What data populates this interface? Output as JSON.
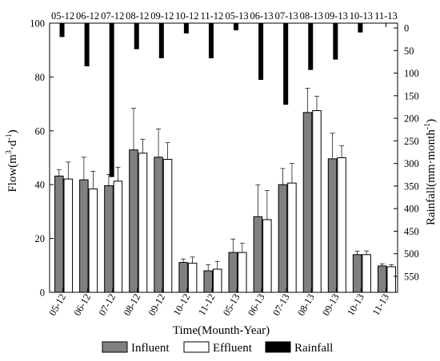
{
  "chart_data": {
    "type": "bar",
    "categories": [
      "05-12",
      "06-12",
      "07-12",
      "08-12",
      "09-12",
      "10-12",
      "11-12",
      "05-13",
      "06-13",
      "07-13",
      "08-13",
      "09-13",
      "10-13",
      "11-13"
    ],
    "xlabel": "Time(Mounth-Year)",
    "ylabel_left": "Flow(m3·d-1)",
    "ylabel_left_parts": {
      "base": "Flow(m",
      "sup1": "3",
      "mid": "·d",
      "sup2": "-1",
      "end": ")"
    },
    "ylabel_right": "Rainfall(mm·month-1)",
    "ylabel_right_parts": {
      "base": "Rainfall(mm·month",
      "sup": "-1",
      "end": ")"
    },
    "ylim_left": [
      0,
      100
    ],
    "yticks_left": [
      0,
      20,
      40,
      60,
      80,
      100
    ],
    "ylim_right": [
      0,
      550
    ],
    "yticks_right": [
      0,
      50,
      100,
      150,
      200,
      250,
      300,
      350,
      400,
      450,
      500,
      550
    ],
    "right_axis_inverted": true,
    "series": [
      {
        "name": "Influent",
        "axis": "left",
        "color": "#808080",
        "values": [
          43.2,
          41.8,
          39.6,
          52.9,
          50.2,
          11.1,
          8.0,
          14.8,
          28.1,
          40.0,
          66.8,
          49.6,
          14.0,
          9.8
        ],
        "errors": [
          2.3,
          8.4,
          4.2,
          15.5,
          10.5,
          1.3,
          2.2,
          5.0,
          11.8,
          6.0,
          9.0,
          9.5,
          1.3,
          0.8
        ]
      },
      {
        "name": "Effluent",
        "axis": "left",
        "color": "#ffffff",
        "values": [
          42.1,
          38.4,
          41.3,
          51.7,
          49.4,
          10.8,
          8.6,
          14.8,
          27.0,
          40.6,
          67.5,
          50.0,
          14.0,
          9.5
        ],
        "errors": [
          6.3,
          6.6,
          5.2,
          5.2,
          6.2,
          2.3,
          2.9,
          3.4,
          10.8,
          7.3,
          5.3,
          4.4,
          1.4,
          0.8
        ]
      },
      {
        "name": "Rainfall",
        "axis": "right",
        "color": "#000000",
        "values": [
          20,
          85,
          330,
          47,
          67,
          12,
          67,
          5,
          115,
          170,
          93,
          70,
          10,
          0
        ]
      }
    ],
    "legend_position": "bottom"
  }
}
